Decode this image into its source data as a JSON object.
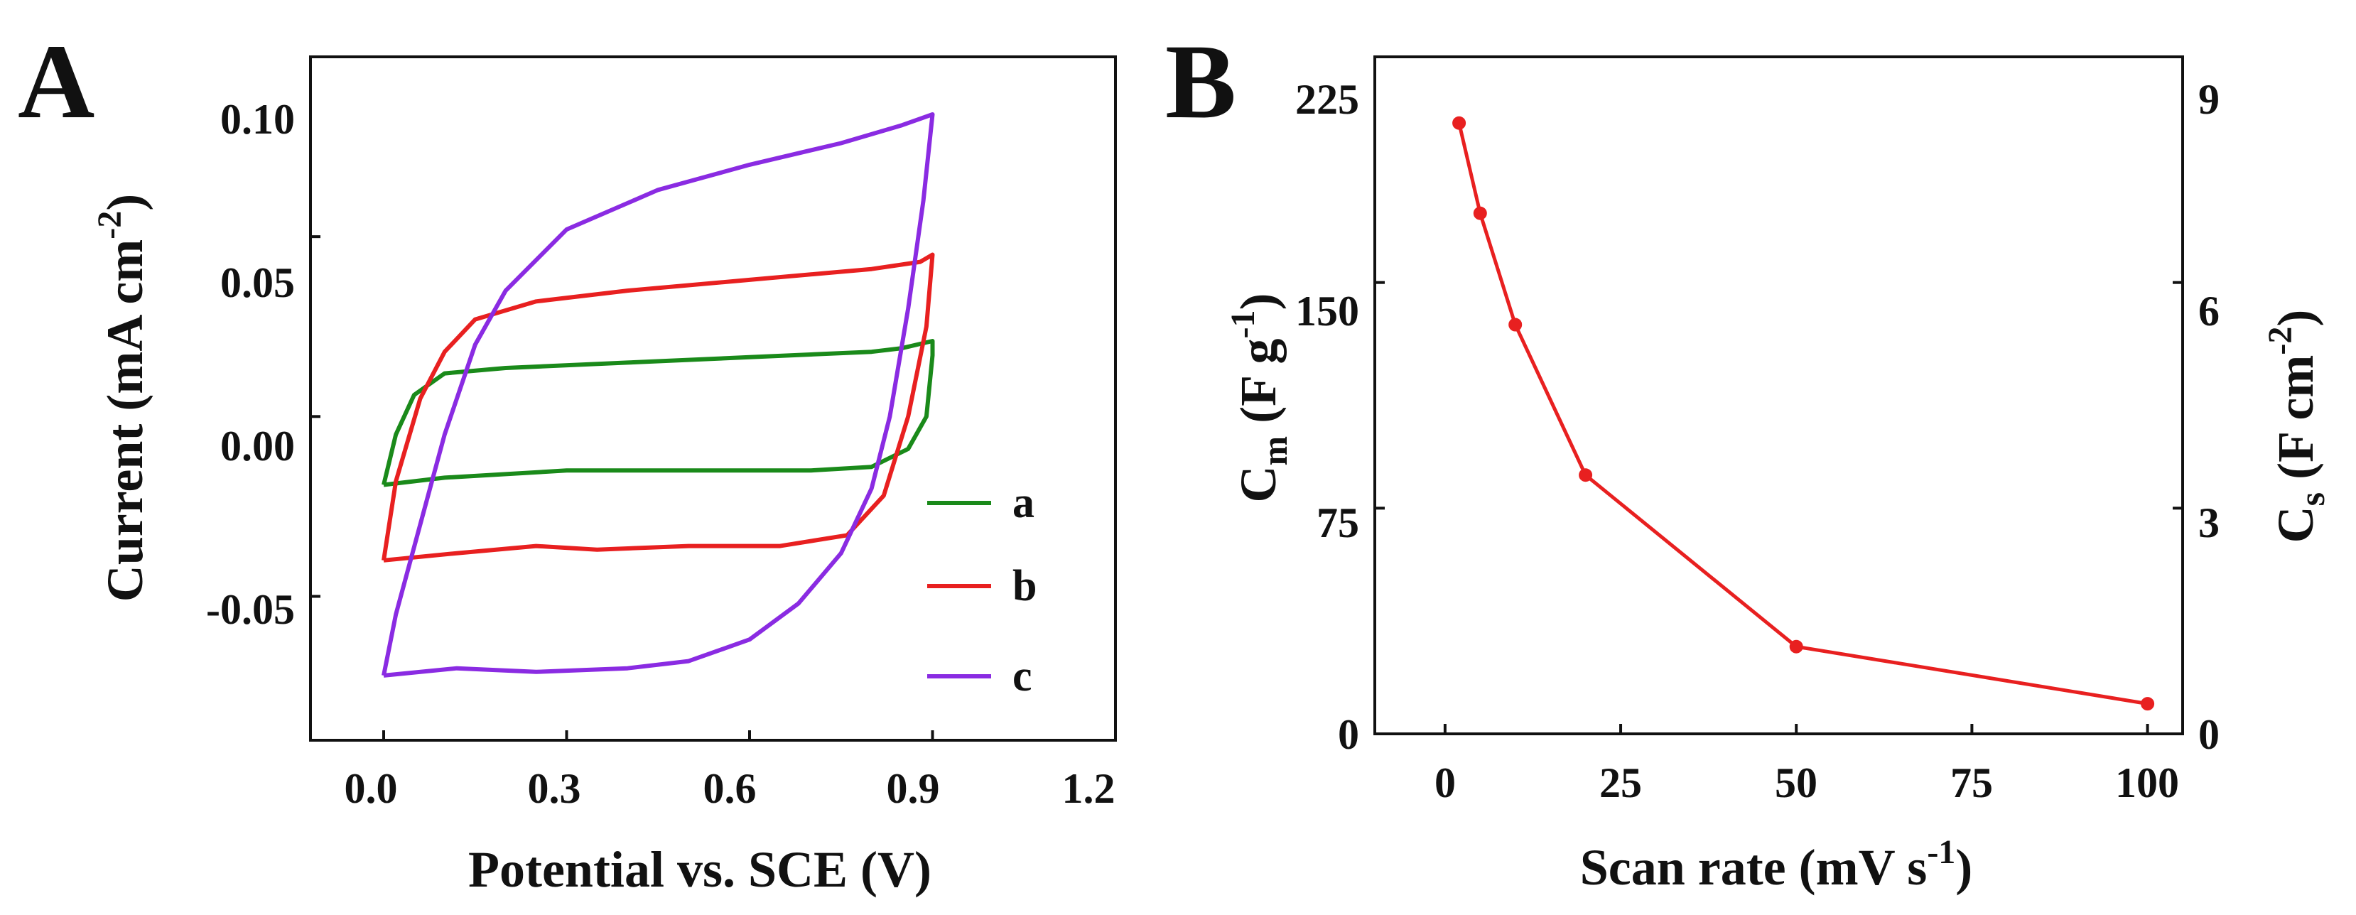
{
  "chart_data": [
    {
      "id": "A",
      "type": "line",
      "panel_label": "A",
      "xlabel": "Potential vs. SCE (V)",
      "ylabel": {
        "main": "Current (mA cm",
        "sup": "-2",
        "close": ")"
      },
      "xlim": [
        -0.12,
        1.2
      ],
      "ylim": [
        -0.09,
        0.1
      ],
      "xticks": [
        "0.0",
        "0.3",
        "0.6",
        "0.9",
        "1.2"
      ],
      "xtick_values": [
        0.0,
        0.3,
        0.6,
        0.9,
        1.2
      ],
      "yticks": [
        "0.10",
        "0.05",
        "0.00",
        "-0.05"
      ],
      "ytick_values": [
        0.1,
        0.05,
        0.0,
        -0.05
      ],
      "series": [
        {
          "name": "a",
          "color": "#1a8a1a",
          "points": [
            [
              0.0,
              -0.019
            ],
            [
              0.02,
              -0.005
            ],
            [
              0.05,
              0.006
            ],
            [
              0.1,
              0.012
            ],
            [
              0.2,
              0.0135
            ],
            [
              0.4,
              0.015
            ],
            [
              0.6,
              0.0165
            ],
            [
              0.8,
              0.018
            ],
            [
              0.85,
              0.019
            ],
            [
              0.9,
              0.021
            ],
            [
              0.9,
              0.017
            ],
            [
              0.89,
              0.0
            ],
            [
              0.86,
              -0.009
            ],
            [
              0.8,
              -0.014
            ],
            [
              0.7,
              -0.015
            ],
            [
              0.5,
              -0.015
            ],
            [
              0.3,
              -0.015
            ],
            [
              0.1,
              -0.017
            ],
            [
              0.0,
              -0.019
            ]
          ]
        },
        {
          "name": "b",
          "color": "#e82020",
          "points": [
            [
              0.0,
              -0.04
            ],
            [
              0.02,
              -0.018
            ],
            [
              0.06,
              0.005
            ],
            [
              0.1,
              0.018
            ],
            [
              0.15,
              0.027
            ],
            [
              0.25,
              0.032
            ],
            [
              0.4,
              0.035
            ],
            [
              0.6,
              0.038
            ],
            [
              0.8,
              0.041
            ],
            [
              0.88,
              0.043
            ],
            [
              0.9,
              0.045
            ],
            [
              0.89,
              0.025
            ],
            [
              0.86,
              0.0
            ],
            [
              0.82,
              -0.022
            ],
            [
              0.76,
              -0.033
            ],
            [
              0.65,
              -0.036
            ],
            [
              0.5,
              -0.036
            ],
            [
              0.35,
              -0.037
            ],
            [
              0.25,
              -0.036
            ],
            [
              0.12,
              -0.038
            ],
            [
              0.0,
              -0.04
            ]
          ]
        },
        {
          "name": "c",
          "color": "#8a2be2",
          "points": [
            [
              0.0,
              -0.072
            ],
            [
              0.02,
              -0.055
            ],
            [
              0.06,
              -0.03
            ],
            [
              0.1,
              -0.005
            ],
            [
              0.15,
              0.02
            ],
            [
              0.2,
              0.035
            ],
            [
              0.3,
              0.052
            ],
            [
              0.45,
              0.063
            ],
            [
              0.6,
              0.07
            ],
            [
              0.75,
              0.076
            ],
            [
              0.85,
              0.081
            ],
            [
              0.9,
              0.084
            ],
            [
              0.885,
              0.06
            ],
            [
              0.86,
              0.03
            ],
            [
              0.83,
              0.0
            ],
            [
              0.8,
              -0.02
            ],
            [
              0.75,
              -0.038
            ],
            [
              0.68,
              -0.052
            ],
            [
              0.6,
              -0.062
            ],
            [
              0.5,
              -0.068
            ],
            [
              0.4,
              -0.07
            ],
            [
              0.25,
              -0.071
            ],
            [
              0.12,
              -0.07
            ],
            [
              0.0,
              -0.072
            ]
          ]
        }
      ],
      "legend": [
        "a",
        "b",
        "c"
      ],
      "legend_position": "right-center"
    },
    {
      "id": "B",
      "type": "line",
      "panel_label": "B",
      "xlabel": {
        "main": "Scan rate (mV s",
        "sup": "-1",
        "close": ")"
      },
      "ylabel_left": {
        "main": "C",
        "sub": "m",
        "rest": " (F g",
        "sup": "-1",
        "close": ")"
      },
      "ylabel_right": {
        "main": "C",
        "sub": "s",
        "rest": " (F cm",
        "sup": "-2",
        "close": ")"
      },
      "xlim": [
        -10,
        105
      ],
      "ylim_left": [
        0,
        225
      ],
      "ylim_right": [
        0,
        9
      ],
      "xticks": [
        "0",
        "25",
        "50",
        "75",
        "100"
      ],
      "xtick_values": [
        0,
        25,
        50,
        75,
        100
      ],
      "yticks_left": [
        "0",
        "75",
        "150",
        "225"
      ],
      "ytick_values_left": [
        0,
        75,
        150,
        225
      ],
      "yticks_right": [
        "0",
        "3",
        "6",
        "9"
      ],
      "ytick_values_right": [
        0,
        3,
        6,
        9
      ],
      "series": [
        {
          "name": "Cm",
          "color": "#e82020",
          "x": [
            2,
            5,
            10,
            20,
            50,
            100
          ],
          "y": [
            203,
            173,
            136,
            86,
            29,
            10
          ]
        }
      ]
    }
  ]
}
